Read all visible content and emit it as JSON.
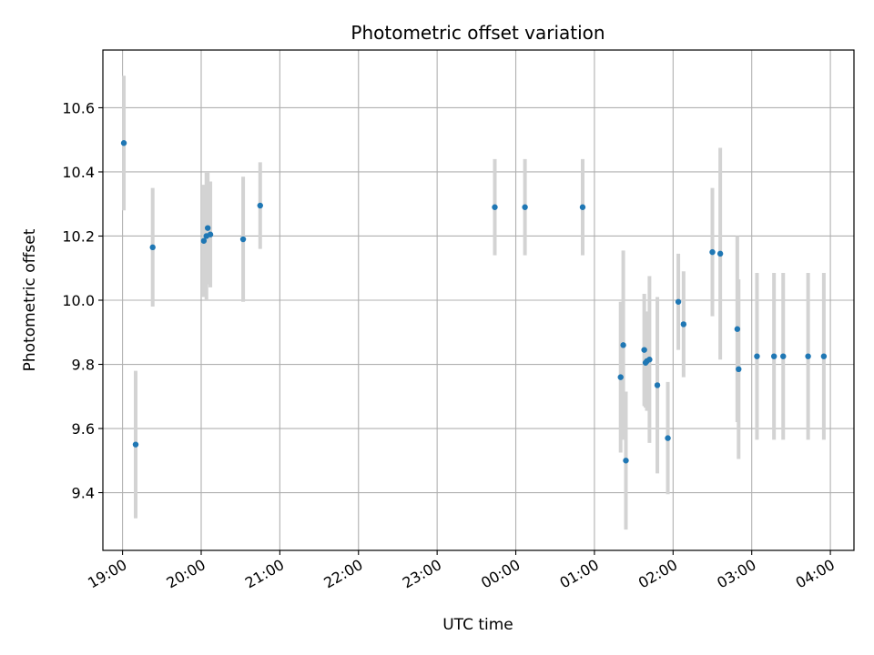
{
  "chart_data": {
    "type": "scatter",
    "title": "Photometric offset variation",
    "xlabel": "UTC time",
    "ylabel": "Photometric offset",
    "grid": true,
    "xlim": [
      "18:45",
      "04:18"
    ],
    "ylim": [
      9.22,
      10.78
    ],
    "xticks": [
      "19:00",
      "20:00",
      "21:00",
      "22:00",
      "23:00",
      "00:00",
      "01:00",
      "02:00",
      "03:00",
      "04:00"
    ],
    "yticks": [
      "9.4",
      "9.6",
      "9.8",
      "10.0",
      "10.2",
      "10.4",
      "10.6"
    ],
    "colors": {
      "points": "#1f77b4",
      "errorbars": "#d3d3d3",
      "grid": "#b0b0b0"
    },
    "points": [
      {
        "x": "19:01",
        "y": 10.49,
        "err": 0.21
      },
      {
        "x": "19:10",
        "y": 9.55,
        "err": 0.23
      },
      {
        "x": "19:23",
        "y": 10.165,
        "err": 0.185
      },
      {
        "x": "20:02",
        "y": 10.185,
        "err": 0.175
      },
      {
        "x": "20:04",
        "y": 10.2,
        "err": 0.2
      },
      {
        "x": "20:05",
        "y": 10.225,
        "err": 0.175
      },
      {
        "x": "20:07",
        "y": 10.205,
        "err": 0.165
      },
      {
        "x": "20:32",
        "y": 10.19,
        "err": 0.195
      },
      {
        "x": "20:45",
        "y": 10.295,
        "err": 0.135
      },
      {
        "x": "23:44",
        "y": 10.29,
        "err": 0.15
      },
      {
        "x": "00:07",
        "y": 10.29,
        "err": 0.15
      },
      {
        "x": "00:51",
        "y": 10.29,
        "err": 0.15
      },
      {
        "x": "01:20",
        "y": 9.76,
        "err": 0.235
      },
      {
        "x": "01:22",
        "y": 9.86,
        "err": 0.295
      },
      {
        "x": "01:24",
        "y": 9.5,
        "err": 0.215
      },
      {
        "x": "01:38",
        "y": 9.845,
        "err": 0.175
      },
      {
        "x": "01:39",
        "y": 9.805,
        "err": 0.14
      },
      {
        "x": "01:40",
        "y": 9.81,
        "err": 0.155
      },
      {
        "x": "01:42",
        "y": 9.815,
        "err": 0.26
      },
      {
        "x": "01:48",
        "y": 9.735,
        "err": 0.275
      },
      {
        "x": "01:56",
        "y": 9.57,
        "err": 0.175
      },
      {
        "x": "02:04",
        "y": 9.995,
        "err": 0.15
      },
      {
        "x": "02:08",
        "y": 9.925,
        "err": 0.165
      },
      {
        "x": "02:30",
        "y": 10.15,
        "err": 0.2
      },
      {
        "x": "02:36",
        "y": 10.145,
        "err": 0.33
      },
      {
        "x": "02:49",
        "y": 9.91,
        "err": 0.29
      },
      {
        "x": "02:50",
        "y": 9.785,
        "err": 0.28
      },
      {
        "x": "03:04",
        "y": 9.825,
        "err": 0.26
      },
      {
        "x": "03:17",
        "y": 9.825,
        "err": 0.26
      },
      {
        "x": "03:24",
        "y": 9.825,
        "err": 0.26
      },
      {
        "x": "03:43",
        "y": 9.825,
        "err": 0.26
      },
      {
        "x": "03:55",
        "y": 9.825,
        "err": 0.26
      }
    ]
  }
}
